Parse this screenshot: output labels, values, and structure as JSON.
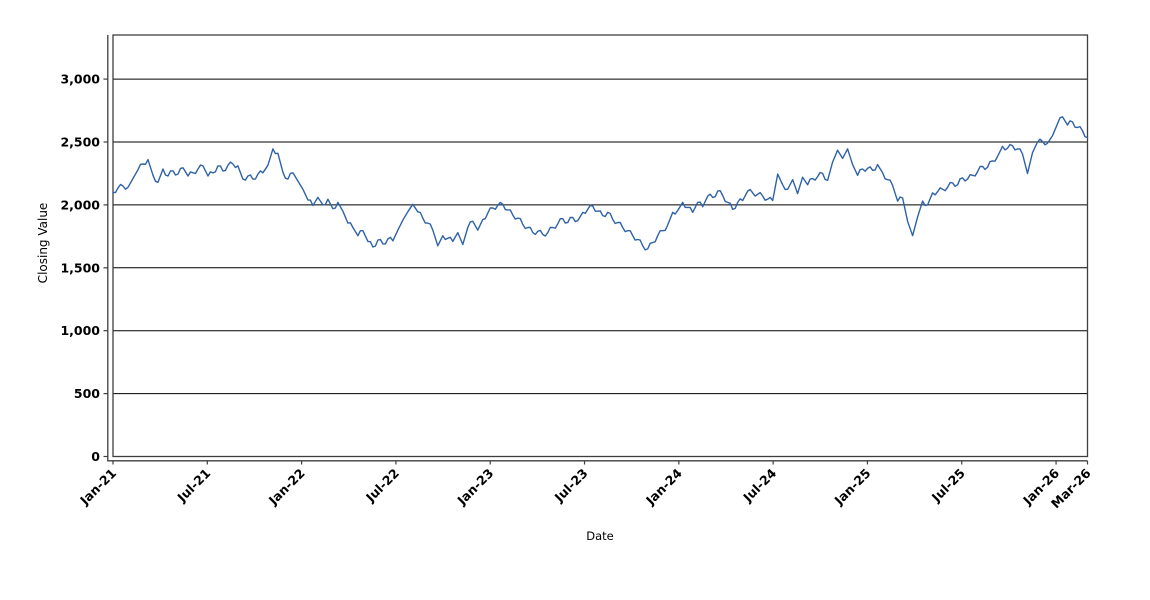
{
  "chart": {
    "y_axis": {
      "title": "Closing Value",
      "tick_labels": [
        "0",
        "500",
        "1,000",
        "1,500",
        "2,000",
        "2,500",
        "3,000"
      ],
      "tick_values": [
        0,
        500,
        1000,
        1500,
        2000,
        2500,
        3000
      ]
    },
    "x_axis": {
      "title": "Date",
      "tick_labels": [
        "Jan-21",
        "Jul-21",
        "Jan-22",
        "Jul-22",
        "Jan-23",
        "Jul-23",
        "Jan-24",
        "Jul-24",
        "Jan-25",
        "Jul-25",
        "Jan-26",
        "Mar-26"
      ],
      "tick_months": [
        0,
        6,
        12,
        18,
        24,
        30,
        36,
        42,
        48,
        54,
        60,
        62
      ]
    },
    "colors": {
      "line": "#2e62a8",
      "grid": "#000000",
      "frame": "#3f3f3f",
      "text": "#000000",
      "background": "#ffffff"
    }
  },
  "chart_data": {
    "type": "line",
    "title": "",
    "xlabel": "Date",
    "ylabel": "Closing Value",
    "x_start_label": "Jan-21",
    "x_end_label": "Mar-26",
    "x_span_months": 62,
    "ylim": [
      0,
      3350
    ],
    "grid": "horizontal only",
    "legend": "none",
    "sampling": "evenly spaced from Jan-21 through Mar-26",
    "series": [
      {
        "name": "Closing Value",
        "color": "#2e62a8",
        "values": [
          2100,
          2135,
          2150,
          2140,
          2210,
          2280,
          2325,
          2360,
          2235,
          2180,
          2285,
          2230,
          2270,
          2245,
          2295,
          2230,
          2255,
          2285,
          2310,
          2230,
          2255,
          2310,
          2270,
          2315,
          2325,
          2310,
          2205,
          2230,
          2205,
          2245,
          2255,
          2315,
          2445,
          2410,
          2260,
          2205,
          2255,
          2190,
          2125,
          2040,
          1995,
          2060,
          2000,
          2045,
          1970,
          2020,
          1950,
          1855,
          1820,
          1755,
          1795,
          1710,
          1665,
          1720,
          1690,
          1730,
          1715,
          1800,
          1880,
          1945,
          2005,
          1945,
          1895,
          1855,
          1800,
          1675,
          1755,
          1735,
          1710,
          1780,
          1685,
          1820,
          1870,
          1800,
          1885,
          1935,
          1975,
          1995,
          2005,
          1960,
          1920,
          1895,
          1845,
          1820,
          1780,
          1790,
          1765,
          1780,
          1820,
          1850,
          1890,
          1860,
          1900,
          1875,
          1940,
          1965,
          1990,
          1950,
          1915,
          1940,
          1885,
          1860,
          1820,
          1795,
          1755,
          1725,
          1675,
          1650,
          1700,
          1755,
          1795,
          1840,
          1940,
          1955,
          2020,
          1980,
          1940,
          2020,
          1985,
          2070,
          2060,
          2110,
          2075,
          2020,
          1965,
          2020,
          2035,
          2110,
          2095,
          2085,
          2070,
          2045,
          2035,
          2245,
          2160,
          2125,
          2200,
          2090,
          2220,
          2160,
          2210,
          2225,
          2250,
          2195,
          2340,
          2435,
          2370,
          2445,
          2320,
          2235,
          2285,
          2290,
          2275,
          2320,
          2255,
          2200,
          2155,
          2030,
          2055,
          1870,
          1755,
          1905,
          2030,
          2000,
          2095,
          2105,
          2125,
          2140,
          2175,
          2160,
          2215,
          2205,
          2235,
          2265,
          2305,
          2300,
          2350,
          2385,
          2465,
          2450,
          2470,
          2445,
          2405,
          2250,
          2415,
          2500,
          2505,
          2490,
          2550,
          2645,
          2700,
          2635,
          2660,
          2615,
          2590,
          2535
        ]
      }
    ]
  }
}
